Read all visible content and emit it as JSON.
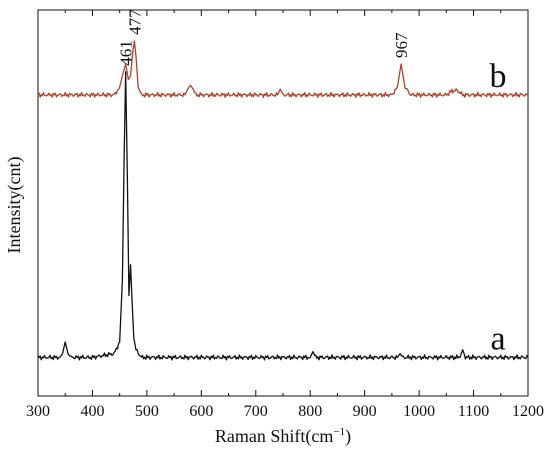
{
  "chart_data": {
    "type": "line",
    "xlabel": "Raman Shift(cm",
    "xlabel_sup": "−1",
    "xlabel_close": ")",
    "ylabel": "Intensity(cnt)",
    "xlim": [
      300,
      1200
    ],
    "ylim": [
      0,
      100
    ],
    "xticks": [
      "300",
      "400",
      "500",
      "600",
      "700",
      "800",
      "900",
      "1000",
      "1100",
      "1200"
    ],
    "yticks_shown": false,
    "legend": "none",
    "grid": false,
    "series": [
      {
        "name": "a",
        "color": "#111111",
        "x": [
          300,
          340,
          345,
          350,
          355,
          360,
          400,
          440,
          450,
          455,
          458,
          461,
          464,
          467,
          470,
          473,
          476,
          480,
          490,
          520,
          560,
          600,
          700,
          800,
          805,
          810,
          900,
          960,
          965,
          970,
          1050,
          1075,
          1080,
          1085,
          1150,
          1200
        ],
        "y": [
          10,
          10,
          11,
          14,
          11,
          10,
          10,
          11,
          14,
          30,
          60,
          84,
          58,
          26,
          34,
          24,
          15,
          12,
          10,
          10,
          10,
          10,
          10,
          10,
          11.5,
          10,
          10,
          10,
          11,
          10,
          10,
          10,
          12,
          10,
          10,
          10
        ]
      },
      {
        "name": "b",
        "color": "#b5402a",
        "x": [
          300,
          400,
          440,
          450,
          455,
          461,
          466,
          470,
          474,
          477,
          480,
          484,
          490,
          530,
          570,
          575,
          580,
          585,
          590,
          700,
          740,
          745,
          750,
          900,
          950,
          960,
          967,
          974,
          985,
          1050,
          1060,
          1070,
          1080,
          1200
        ],
        "y": [
          78,
          78,
          78,
          80,
          83,
          86,
          82,
          83,
          89,
          92,
          88,
          80,
          78,
          78,
          78,
          79.5,
          80.5,
          79.5,
          78,
          78,
          78,
          79.5,
          78,
          78,
          78,
          80,
          86,
          80,
          78,
          78,
          79,
          79.2,
          78,
          78
        ]
      }
    ],
    "annotations": [
      {
        "text": "461",
        "x": 461
      },
      {
        "text": "477",
        "x": 477
      },
      {
        "text": "967",
        "x": 967
      },
      {
        "text": "b",
        "series": "b"
      },
      {
        "text": "a",
        "series": "a"
      }
    ]
  }
}
